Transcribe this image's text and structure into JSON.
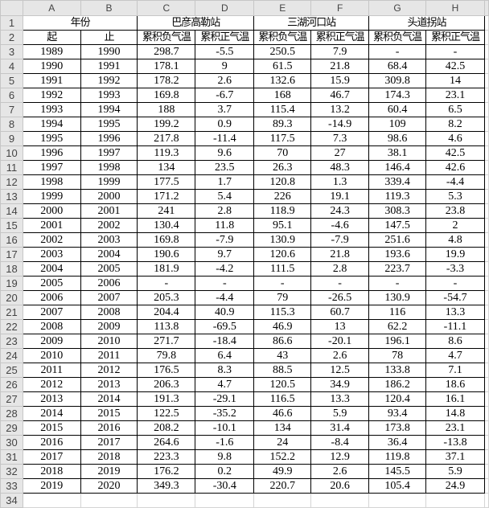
{
  "columns": [
    "A",
    "B",
    "C",
    "D",
    "E",
    "F",
    "G",
    "H"
  ],
  "header_row1": {
    "year": "年份",
    "station1": "巴彦高勒站",
    "station2": "三湖河口站",
    "station3": "头道拐站"
  },
  "header_row2": [
    "起",
    "止",
    "累积负气温",
    "累积正气温",
    "累积负气温",
    "累积正气温",
    "累积负气温",
    "累积正气温"
  ],
  "rows": [
    [
      "1989",
      "1990",
      "298.7",
      "-5.5",
      "250.5",
      "7.9",
      "-",
      "-"
    ],
    [
      "1990",
      "1991",
      "178.1",
      "9",
      "61.5",
      "21.8",
      "68.4",
      "42.5"
    ],
    [
      "1991",
      "1992",
      "178.2",
      "2.6",
      "132.6",
      "15.9",
      "309.8",
      "14"
    ],
    [
      "1992",
      "1993",
      "169.8",
      "-6.7",
      "168",
      "46.7",
      "174.3",
      "23.1"
    ],
    [
      "1993",
      "1994",
      "188",
      "3.7",
      "115.4",
      "13.2",
      "60.4",
      "6.5"
    ],
    [
      "1994",
      "1995",
      "199.2",
      "0.9",
      "89.3",
      "-14.9",
      "109",
      "8.2"
    ],
    [
      "1995",
      "1996",
      "217.8",
      "-11.4",
      "117.5",
      "7.3",
      "98.6",
      "4.6"
    ],
    [
      "1996",
      "1997",
      "119.3",
      "9.6",
      "70",
      "27",
      "38.1",
      "42.5"
    ],
    [
      "1997",
      "1998",
      "134",
      "23.5",
      "26.3",
      "48.3",
      "146.4",
      "42.6"
    ],
    [
      "1998",
      "1999",
      "177.5",
      "1.7",
      "120.8",
      "1.3",
      "339.4",
      "-4.4"
    ],
    [
      "1999",
      "2000",
      "171.2",
      "5.4",
      "226",
      "19.1",
      "119.3",
      "5.3"
    ],
    [
      "2000",
      "2001",
      "241",
      "2.8",
      "118.9",
      "24.3",
      "308.3",
      "23.8"
    ],
    [
      "2001",
      "2002",
      "130.4",
      "11.8",
      "95.1",
      "-4.6",
      "147.5",
      "2"
    ],
    [
      "2002",
      "2003",
      "169.8",
      "-7.9",
      "130.9",
      "-7.9",
      "251.6",
      "4.8"
    ],
    [
      "2003",
      "2004",
      "190.6",
      "9.7",
      "120.6",
      "21.8",
      "193.6",
      "19.9"
    ],
    [
      "2004",
      "2005",
      "181.9",
      "-4.2",
      "111.5",
      "2.8",
      "223.7",
      "-3.3"
    ],
    [
      "2005",
      "2006",
      "-",
      "-",
      "-",
      "-",
      "-",
      "-"
    ],
    [
      "2006",
      "2007",
      "205.3",
      "-4.4",
      "79",
      "-26.5",
      "130.9",
      "-54.7"
    ],
    [
      "2007",
      "2008",
      "204.4",
      "40.9",
      "115.3",
      "60.7",
      "116",
      "13.3"
    ],
    [
      "2008",
      "2009",
      "113.8",
      "-69.5",
      "46.9",
      "13",
      "62.2",
      "-11.1"
    ],
    [
      "2009",
      "2010",
      "271.7",
      "-18.4",
      "86.6",
      "-20.1",
      "196.1",
      "8.6"
    ],
    [
      "2010",
      "2011",
      "79.8",
      "6.4",
      "43",
      "2.6",
      "78",
      "4.7"
    ],
    [
      "2011",
      "2012",
      "176.5",
      "8.3",
      "88.5",
      "12.5",
      "133.8",
      "7.1"
    ],
    [
      "2012",
      "2013",
      "206.3",
      "4.7",
      "120.5",
      "34.9",
      "186.2",
      "18.6"
    ],
    [
      "2013",
      "2014",
      "191.3",
      "-29.1",
      "116.5",
      "13.3",
      "120.4",
      "16.1"
    ],
    [
      "2014",
      "2015",
      "122.5",
      "-35.2",
      "46.6",
      "5.9",
      "93.4",
      "14.8"
    ],
    [
      "2015",
      "2016",
      "208.2",
      "-10.1",
      "134",
      "31.4",
      "173.8",
      "23.1"
    ],
    [
      "2016",
      "2017",
      "264.6",
      "-1.6",
      "24",
      "-8.4",
      "36.4",
      "-13.8"
    ],
    [
      "2017",
      "2018",
      "223.3",
      "9.8",
      "152.2",
      "12.9",
      "119.8",
      "37.1"
    ],
    [
      "2018",
      "2019",
      "176.2",
      "0.2",
      "49.9",
      "2.6",
      "145.5",
      "5.9"
    ],
    [
      "2019",
      "2020",
      "349.3",
      "-30.4",
      "220.7",
      "20.6",
      "105.4",
      "24.9"
    ]
  ]
}
